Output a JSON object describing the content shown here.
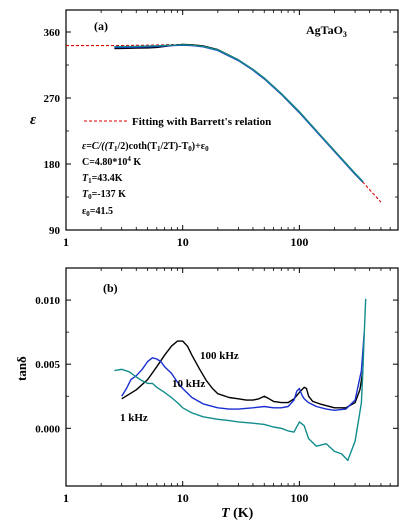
{
  "chart_data": [
    {
      "type": "line",
      "panel_label": "(a)",
      "material": "AgTaO",
      "material_sub": "3",
      "xlabel": "",
      "ylabel": "ε",
      "xscale": "log",
      "xlim": [
        1,
        700
      ],
      "ylim": [
        90,
        390
      ],
      "xticks": [
        1,
        10,
        100
      ],
      "xtick_labels": [
        "1",
        "10",
        "100"
      ],
      "yticks": [
        90,
        180,
        270,
        360
      ],
      "ytick_labels": [
        "90",
        "180",
        "270",
        "360"
      ],
      "legend_position": "center-right",
      "fit_params": {
        "formula_prefix": "ε=C/((T",
        "formula_mid": "/2)coth(T",
        "formula_mid2": "/2T)-T",
        "formula_end": ")+ε",
        "C": "C=4.80*10",
        "C_exp": "4",
        "C_unit": " K",
        "T1": "T",
        "T1_sub": "1",
        "T1_val": "=43.4K",
        "T0": "T",
        "T0_sub": "0",
        "T0_val": "=-137 K",
        "eps0": "ε",
        "eps0_sub": "0",
        "eps0_val": "=41.5"
      },
      "series": [
        {
          "name": "Fitting with Barrett's relation",
          "color": "#e00000",
          "style": "dashed",
          "x": [
            1,
            2,
            3,
            5,
            8,
            10,
            12,
            15,
            20,
            30,
            40,
            50,
            70,
            100,
            150,
            200,
            300,
            400,
            500
          ],
          "y": [
            341.5,
            341.5,
            341.6,
            342,
            342.8,
            343.1,
            342.7,
            341,
            336,
            322,
            309,
            297,
            276,
            251,
            220,
            198,
            167,
            145,
            128
          ]
        },
        {
          "name": "",
          "color": "#000000",
          "style": "solid",
          "x": [
            2.6,
            3,
            4,
            5,
            6,
            8,
            10,
            12,
            15,
            20,
            30,
            40,
            50,
            70,
            100,
            150,
            200,
            300,
            350
          ],
          "y": [
            337.5,
            337.7,
            338,
            338.3,
            339,
            341.5,
            343,
            342.5,
            341,
            336,
            322,
            309,
            297,
            276,
            251,
            220,
            198,
            167,
            156
          ]
        },
        {
          "name": "",
          "color": "#1a2fd0",
          "style": "solid",
          "x": [
            2.6,
            3,
            4,
            5,
            6,
            8,
            10,
            12,
            15,
            20,
            30,
            40,
            50,
            70,
            100,
            150,
            200,
            300,
            350
          ],
          "y": [
            339,
            339,
            339.3,
            339.8,
            340.4,
            341.5,
            342,
            341.4,
            339.8,
            334.8,
            321,
            308,
            296,
            275,
            250,
            219,
            197,
            166,
            155
          ]
        },
        {
          "name": "",
          "color": "#138c8c",
          "style": "solid",
          "x": [
            2.6,
            3,
            4,
            5,
            6,
            8,
            10,
            12,
            15,
            20,
            30,
            40,
            50,
            70,
            100,
            150,
            200,
            300,
            350
          ],
          "y": [
            340,
            340.1,
            340.4,
            340.8,
            341.2,
            342,
            342.6,
            342,
            340.4,
            335.6,
            322,
            309,
            297,
            276,
            251,
            220,
            198,
            167,
            156
          ]
        }
      ]
    },
    {
      "type": "line",
      "panel_label": "(b)",
      "xlabel": "T (K)",
      "ylabel": "tanδ",
      "xscale": "log",
      "xlim": [
        1,
        700
      ],
      "ylim": [
        -0.0045,
        0.0125
      ],
      "xticks": [
        1,
        10,
        100
      ],
      "xtick_labels": [
        "1",
        "10",
        "100"
      ],
      "yticks": [
        0.0,
        0.005,
        0.01
      ],
      "ytick_labels": [
        "0.000",
        "0.005",
        "0.010"
      ],
      "series": [
        {
          "name": "100 kHz",
          "color": "#000000",
          "x": [
            3,
            4,
            5,
            6,
            7,
            8,
            9,
            10,
            11,
            12,
            14,
            16,
            18,
            20,
            25,
            30,
            35,
            40,
            45,
            50,
            55,
            60,
            70,
            80,
            90,
            100,
            110,
            115,
            120,
            130,
            150,
            200,
            250,
            300,
            330,
            350
          ],
          "y": [
            0.0023,
            0.003,
            0.0038,
            0.0048,
            0.0057,
            0.0064,
            0.0068,
            0.0068,
            0.0064,
            0.0057,
            0.0046,
            0.0037,
            0.0031,
            0.0027,
            0.0024,
            0.0023,
            0.0022,
            0.0022,
            0.0023,
            0.0025,
            0.0023,
            0.0021,
            0.002,
            0.002,
            0.0023,
            0.0028,
            0.0032,
            0.0031,
            0.0025,
            0.0021,
            0.0019,
            0.0016,
            0.0016,
            0.002,
            0.003,
            0.0045
          ]
        },
        {
          "name": "10 kHz",
          "color": "#1a2fd0",
          "x": [
            3,
            3.3,
            3.6,
            4,
            4.5,
            5,
            5.5,
            6,
            6.5,
            7,
            8,
            9,
            10,
            12,
            15,
            20,
            25,
            30,
            40,
            50,
            60,
            70,
            80,
            90,
            95,
            100,
            105,
            110,
            120,
            140,
            170,
            200,
            250,
            300,
            340,
            360
          ],
          "y": [
            0.0025,
            0.0031,
            0.0038,
            0.0041,
            0.0046,
            0.0052,
            0.0055,
            0.0054,
            0.0052,
            0.0048,
            0.0043,
            0.0036,
            0.0031,
            0.0024,
            0.0019,
            0.0016,
            0.0015,
            0.0015,
            0.0016,
            0.0017,
            0.0016,
            0.0016,
            0.0017,
            0.0022,
            0.0029,
            0.0031,
            0.0026,
            0.0023,
            0.002,
            0.0017,
            0.0015,
            0.0014,
            0.0015,
            0.0022,
            0.0045,
            0.0075
          ]
        },
        {
          "name": "1 kHz",
          "color": "#138c8c",
          "x": [
            2.6,
            3,
            3.5,
            4,
            4.5,
            5,
            5.5,
            6,
            7,
            8,
            9,
            10,
            12,
            15,
            20,
            25,
            30,
            40,
            50,
            60,
            70,
            80,
            90,
            100,
            110,
            120,
            140,
            170,
            200,
            230,
            260,
            300,
            320,
            340,
            350,
            360,
            370
          ],
          "y": [
            0.0045,
            0.0046,
            0.0044,
            0.004,
            0.0037,
            0.0035,
            0.0035,
            0.0032,
            0.0028,
            0.0024,
            0.002,
            0.0016,
            0.0012,
            0.0009,
            0.0007,
            0.0006,
            0.0005,
            0.0004,
            0.0003,
            0.0001,
            0.0,
            -0.0002,
            -0.0003,
            0.0005,
            0.0002,
            -0.0008,
            -0.0014,
            -0.0012,
            -0.0018,
            -0.002,
            -0.0025,
            -0.001,
            0.0005,
            0.002,
            0.0045,
            0.0075,
            0.0101
          ]
        }
      ]
    }
  ]
}
